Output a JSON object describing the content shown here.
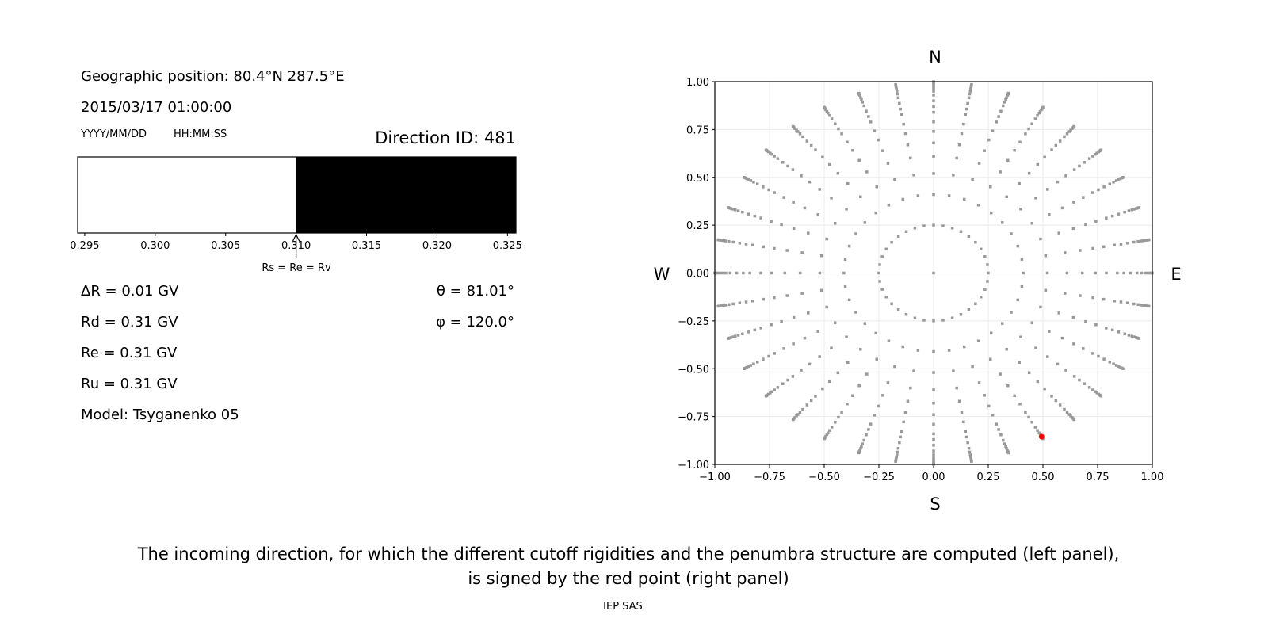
{
  "left_panel": {
    "geo_position": "Geographic position: 80.4°N 287.5°E",
    "datetime": "2015/03/17 01:00:00",
    "date_format": "YYYY/MM/DD",
    "time_format": "HH:MM:SS",
    "direction_id": "Direction ID: 481",
    "marker_label": "Rs = Re = Rv",
    "delta_r": "ΔR = 0.01 GV",
    "rd": "Rd = 0.31 GV",
    "re": "Re = 0.31 GV",
    "ru": "Ru = 0.31 GV",
    "model": "Model: Tsyganenko 05",
    "theta": "θ = 81.01°",
    "phi": "φ = 120.0°"
  },
  "chart_data": [
    {
      "type": "bar",
      "description_role": "penumbra",
      "xlim": [
        0.2945,
        0.3256
      ],
      "xticks": [
        "0.295",
        "0.300",
        "0.305",
        "0.310",
        "0.315",
        "0.320",
        "0.325"
      ],
      "segments": [
        {
          "from": 0.2945,
          "to": 0.31,
          "color": "#ffffff",
          "state": "forbidden"
        },
        {
          "from": 0.31,
          "to": 0.3256,
          "color": "#000000",
          "state": "allowed"
        }
      ],
      "marker_value": 0.31
    },
    {
      "type": "scatter",
      "xlim": [
        -1,
        1
      ],
      "ylim": [
        -1,
        1
      ],
      "xticks": [
        "−1.00",
        "−0.75",
        "−0.50",
        "−0.25",
        "0.00",
        "0.25",
        "0.50",
        "0.75",
        "1.00"
      ],
      "yticks": [
        "−1.00",
        "−0.75",
        "−0.50",
        "−0.25",
        "0.00",
        "0.25",
        "0.50",
        "0.75",
        "1.00"
      ],
      "grid": true,
      "point_color": "#999999",
      "highlight_color": "#ff0000",
      "compass": {
        "n": "N",
        "s": "S",
        "w": "W",
        "e": "E"
      },
      "center_point": [
        0,
        0
      ],
      "ring_radius": 0.25,
      "ring_azimuths_step_deg": 10,
      "ray_azimuths_step_deg": 10,
      "ray_radii": [
        0.41,
        0.52,
        0.61,
        0.68,
        0.74,
        0.79,
        0.84,
        0.87,
        0.9,
        0.93,
        0.95,
        0.965,
        0.975,
        0.985,
        0.992,
        0.997,
        1.0
      ],
      "highlight_point": [
        0.494,
        -0.855
      ]
    }
  ],
  "caption": {
    "line1": "The incoming direction, for which the different cutoff rigidities and the penumbra structure are computed (left panel),",
    "line2": "is signed by the red point (right panel)",
    "credit": "IEP SAS"
  }
}
